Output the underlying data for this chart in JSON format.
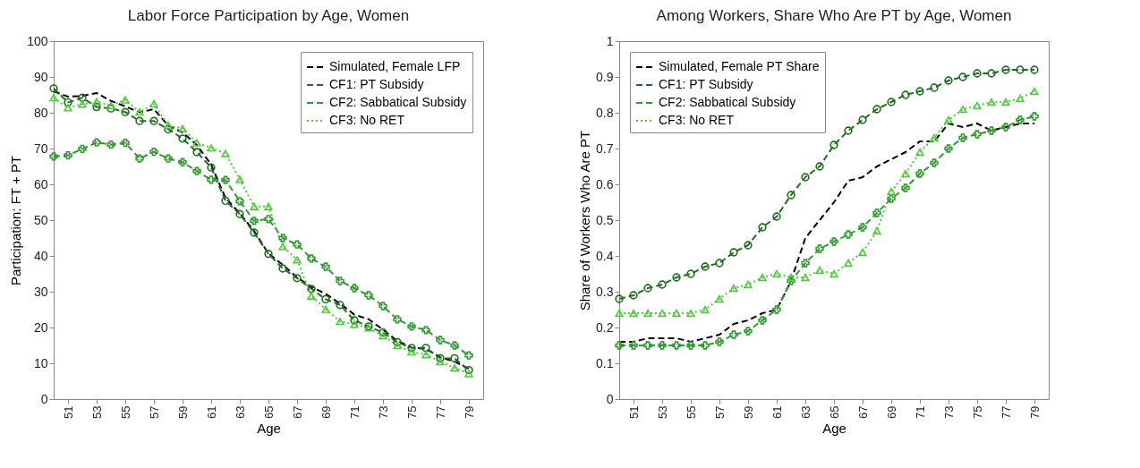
{
  "chart_data": [
    {
      "type": "line",
      "title": "Labor Force Participation by Age, Women",
      "xlabel": "Age",
      "ylabel": "Participation: FT + PT",
      "x": [
        50,
        51,
        52,
        53,
        54,
        55,
        56,
        57,
        58,
        59,
        60,
        61,
        62,
        63,
        64,
        65,
        66,
        67,
        68,
        69,
        70,
        71,
        72,
        73,
        74,
        75,
        76,
        77,
        78,
        79
      ],
      "xlim": [
        50,
        80
      ],
      "xticks": [
        51,
        53,
        55,
        57,
        59,
        61,
        63,
        65,
        67,
        69,
        71,
        73,
        75,
        77,
        79
      ],
      "ylim": [
        0,
        100
      ],
      "yticks": [
        0,
        10,
        20,
        30,
        40,
        50,
        60,
        70,
        80,
        90,
        100
      ],
      "grid": false,
      "legend": "top right",
      "series": [
        {
          "name": "Simulated, Female LFP",
          "color": "#000000",
          "marker": "none",
          "line_style": "dashed",
          "values": [
            86,
            84.5,
            84.7,
            85.5,
            83.3,
            81.8,
            80.1,
            81,
            76.4,
            74.5,
            71,
            65.5,
            56.2,
            51.9,
            46.9,
            40.7,
            37.5,
            34,
            31.3,
            29.4,
            26.7,
            23.6,
            22.3,
            19.4,
            16.3,
            14.4,
            14,
            11.7,
            10.5,
            8.5
          ]
        },
        {
          "name": "CF1: PT Subsidy",
          "color": "#1f6e1f",
          "marker": "circle",
          "line_style": "dashed",
          "values": [
            86.8,
            82.9,
            84.2,
            81.6,
            81.2,
            80.2,
            77.7,
            77.7,
            75.4,
            72.8,
            69,
            64.7,
            55.4,
            51.7,
            46.5,
            40.6,
            36.5,
            33.8,
            30.8,
            27.9,
            26.3,
            22,
            20.3,
            18.6,
            15.9,
            14.3,
            14.3,
            11.4,
            11.4,
            8.1
          ]
        },
        {
          "name": "CF2: Sabbatical Subsidy",
          "color": "#339933",
          "marker": "cross",
          "line_style": "dashed",
          "values": [
            67.8,
            68.1,
            69.9,
            71.7,
            71.1,
            71.6,
            67.2,
            69.1,
            67.2,
            66.2,
            63.7,
            61.3,
            61.2,
            55.3,
            49.8,
            50.3,
            45,
            43.2,
            39.3,
            37,
            33,
            31,
            29,
            26,
            22.3,
            20.3,
            19.3,
            16.5,
            15,
            12.2
          ]
        },
        {
          "name": "CF3: No RET",
          "color": "#4dcc3a",
          "marker": "triangle",
          "line_style": "dotted",
          "values": [
            84.2,
            81.4,
            82.4,
            83.1,
            82,
            83.6,
            80.2,
            82.5,
            76.5,
            75.6,
            71.6,
            70.2,
            68.6,
            61.4,
            53.8,
            53.8,
            42.6,
            38.9,
            28.8,
            25.1,
            21.7,
            20.9,
            19.9,
            17.7,
            15,
            13.2,
            12.4,
            10.5,
            8.7,
            7.1
          ]
        }
      ]
    },
    {
      "type": "line",
      "title": "Among Workers, Share Who Are PT by Age, Women",
      "xlabel": "Age",
      "ylabel": "Share of Workers Who Are PT",
      "x": [
        50,
        51,
        52,
        53,
        54,
        55,
        56,
        57,
        58,
        59,
        60,
        61,
        62,
        63,
        64,
        65,
        66,
        67,
        68,
        69,
        70,
        71,
        72,
        73,
        74,
        75,
        76,
        77,
        78,
        79
      ],
      "xlim": [
        50,
        80
      ],
      "xticks": [
        51,
        53,
        55,
        57,
        59,
        61,
        63,
        65,
        67,
        69,
        71,
        73,
        75,
        77,
        79
      ],
      "ylim": [
        0,
        1
      ],
      "yticks": [
        0,
        0.1,
        0.2,
        0.3,
        0.4,
        0.5,
        0.6,
        0.7,
        0.8,
        0.9,
        1
      ],
      "grid": false,
      "legend": "top left",
      "series": [
        {
          "name": "Simulated, Female PT Share",
          "color": "#000000",
          "marker": "none",
          "line_style": "dashed",
          "values": [
            0.16,
            0.16,
            0.17,
            0.17,
            0.17,
            0.16,
            0.17,
            0.18,
            0.21,
            0.22,
            0.24,
            0.25,
            0.33,
            0.45,
            0.5,
            0.55,
            0.61,
            0.62,
            0.65,
            0.67,
            0.69,
            0.72,
            0.72,
            0.77,
            0.76,
            0.77,
            0.75,
            0.76,
            0.77,
            0.77
          ]
        },
        {
          "name": "CF1: PT Subsidy",
          "color": "#1f6e1f",
          "marker": "circle",
          "line_style": "dashed",
          "values": [
            0.28,
            0.29,
            0.31,
            0.32,
            0.34,
            0.35,
            0.37,
            0.38,
            0.41,
            0.43,
            0.48,
            0.51,
            0.57,
            0.62,
            0.65,
            0.71,
            0.75,
            0.78,
            0.81,
            0.83,
            0.85,
            0.86,
            0.87,
            0.89,
            0.9,
            0.91,
            0.91,
            0.92,
            0.92,
            0.92
          ]
        },
        {
          "name": "CF2: Sabbatical Subsidy",
          "color": "#339933",
          "marker": "cross",
          "line_style": "dashed",
          "values": [
            0.15,
            0.15,
            0.15,
            0.15,
            0.15,
            0.15,
            0.15,
            0.16,
            0.18,
            0.19,
            0.22,
            0.25,
            0.33,
            0.38,
            0.42,
            0.44,
            0.46,
            0.48,
            0.52,
            0.56,
            0.59,
            0.63,
            0.66,
            0.7,
            0.73,
            0.74,
            0.75,
            0.76,
            0.78,
            0.79
          ]
        },
        {
          "name": "CF3: No RET",
          "color": "#4dcc3a",
          "marker": "triangle",
          "line_style": "dotted",
          "values": [
            0.24,
            0.24,
            0.24,
            0.24,
            0.24,
            0.24,
            0.25,
            0.28,
            0.31,
            0.32,
            0.34,
            0.35,
            0.34,
            0.34,
            0.36,
            0.35,
            0.38,
            0.41,
            0.47,
            0.58,
            0.63,
            0.69,
            0.73,
            0.78,
            0.81,
            0.82,
            0.83,
            0.83,
            0.84,
            0.86
          ]
        }
      ]
    }
  ]
}
